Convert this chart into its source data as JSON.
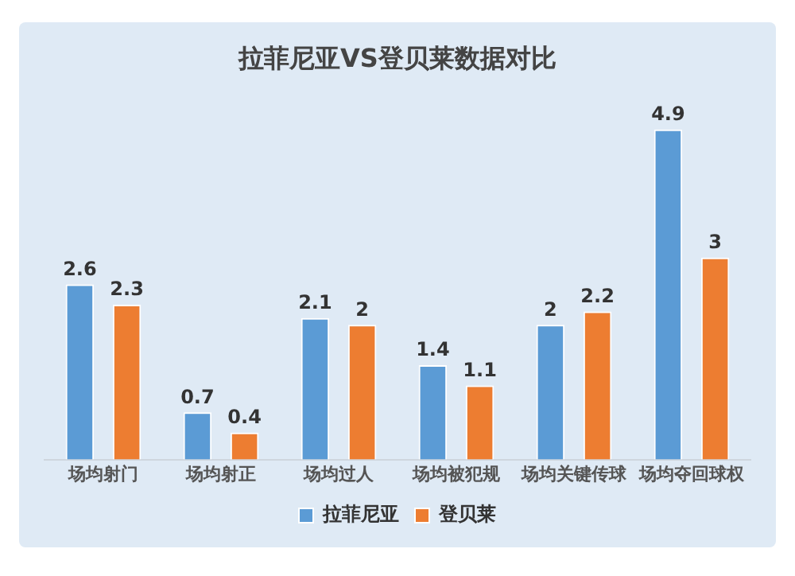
{
  "chart_data": {
    "type": "bar",
    "title": "拉菲尼亚VS登贝莱数据对比",
    "categories": [
      "场均射门",
      "场均射正",
      "场均过人",
      "场均被犯规",
      "场均关键传球",
      "场均夺回球权"
    ],
    "series": [
      {
        "name": "拉菲尼亚",
        "color": "#5b9bd5",
        "values": [
          2.6,
          0.7,
          2.1,
          1.4,
          2.0,
          4.9
        ]
      },
      {
        "name": "登贝莱",
        "color": "#ed7d31",
        "values": [
          2.3,
          0.4,
          2.0,
          1.1,
          2.2,
          3
        ]
      }
    ],
    "data_labels": true,
    "legend": "bottom",
    "grid": false
  }
}
